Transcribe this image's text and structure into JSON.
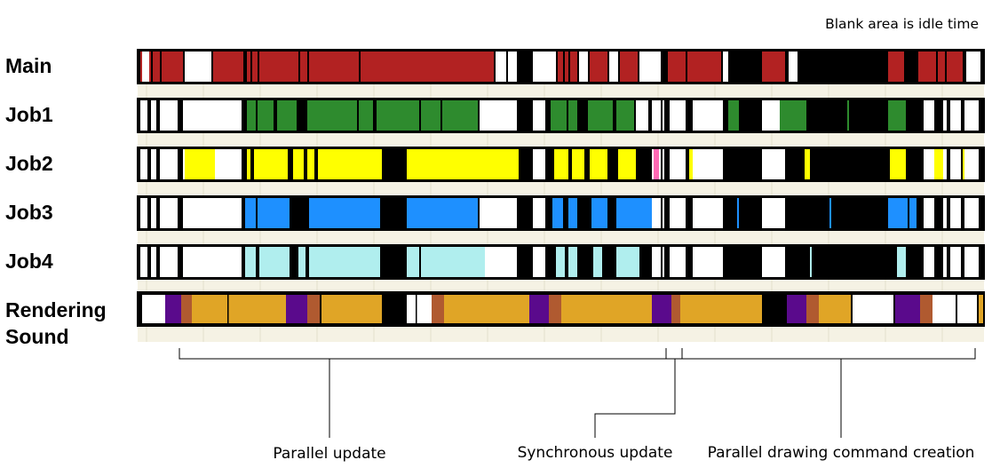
{
  "note": "Blank area is idle time",
  "lanes": [
    {
      "label": "Main",
      "color": "#b22222",
      "pattern": "main"
    },
    {
      "label": "Job1",
      "color": "#2e8b2e",
      "pattern": "job"
    },
    {
      "label": "Job2",
      "color": "#ffff00",
      "pattern": "job",
      "accent": "#ff69b4"
    },
    {
      "label": "Job3",
      "color": "#1e90ff",
      "pattern": "job"
    },
    {
      "label": "Job4",
      "color": "#b0eeee",
      "pattern": "job"
    },
    {
      "label": "Rendering\nSound",
      "label_lines": [
        "Rendering",
        "Sound"
      ],
      "colors": {
        "render": "#e0a526",
        "sound": "#5a0a8c",
        "sync": "#b05a30"
      },
      "pattern": "render"
    }
  ],
  "phases": [
    {
      "label": "Parallel update"
    },
    {
      "label": "Synchronous update"
    },
    {
      "label": "Parallel drawing command creation"
    }
  ],
  "colors": {
    "busy": "#000000",
    "idle": "#ffffff",
    "grid": "#f5f2e4"
  }
}
